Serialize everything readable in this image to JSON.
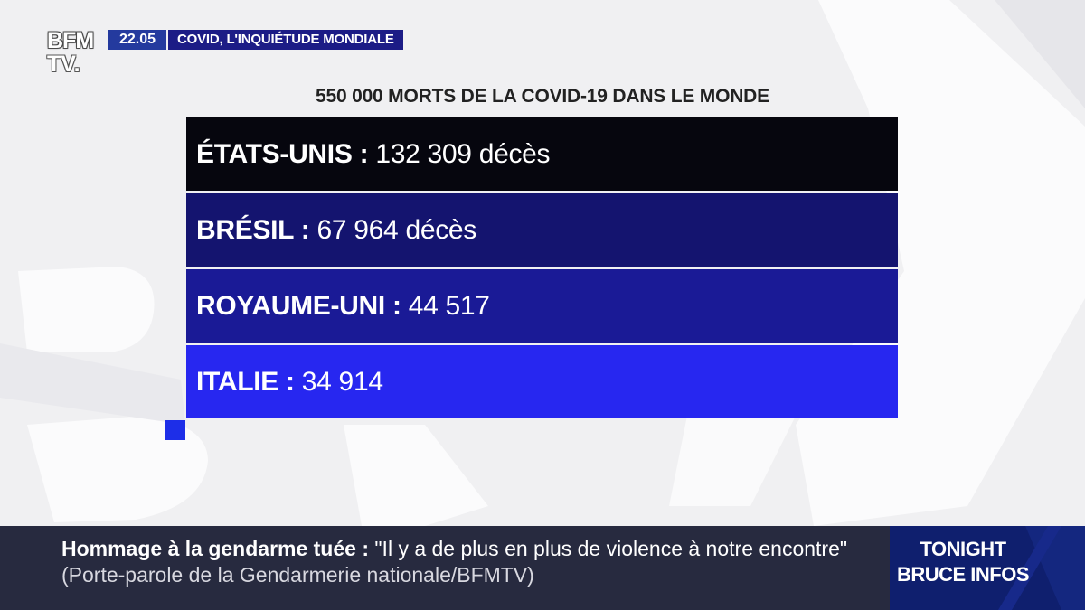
{
  "channel": {
    "logo_line1": "BFM",
    "logo_line2": "TV.",
    "time": "22.05",
    "topic": "COVID, L'INQUIÉTUDE MONDIALE"
  },
  "card": {
    "headline": "550 000 MORTS DE LA COVID-19 DANS LE MONDE",
    "rows": [
      {
        "country": "ÉTATS-UNIS :",
        "value": "132 309 décès",
        "color": "#06060e"
      },
      {
        "country": "BRÉSIL :",
        "value": "67 964 décès",
        "color": "#14146f"
      },
      {
        "country": "ROYAUME-UNI :",
        "value": "44 517",
        "color": "#1a1a96"
      },
      {
        "country": "ITALIE :",
        "value": "34 914",
        "color": "#2727f0"
      }
    ]
  },
  "ticker": {
    "headline": "Hommage à la gendarme tuée :",
    "quote": "\"Il y a de plus en plus de violence à notre encontre\"",
    "source": "(Porte-parole de la Gendarmerie nationale/BFMTV)"
  },
  "show": {
    "line1": "TONIGHT",
    "line2": "BRUCE INFOS"
  },
  "colors": {
    "accent": "#1d2ee8",
    "clock_bg": "#243a9e",
    "topic_bg": "#1c1c86",
    "ticker_bg": "#272a3f",
    "show_bg": "#0f1f6e"
  }
}
